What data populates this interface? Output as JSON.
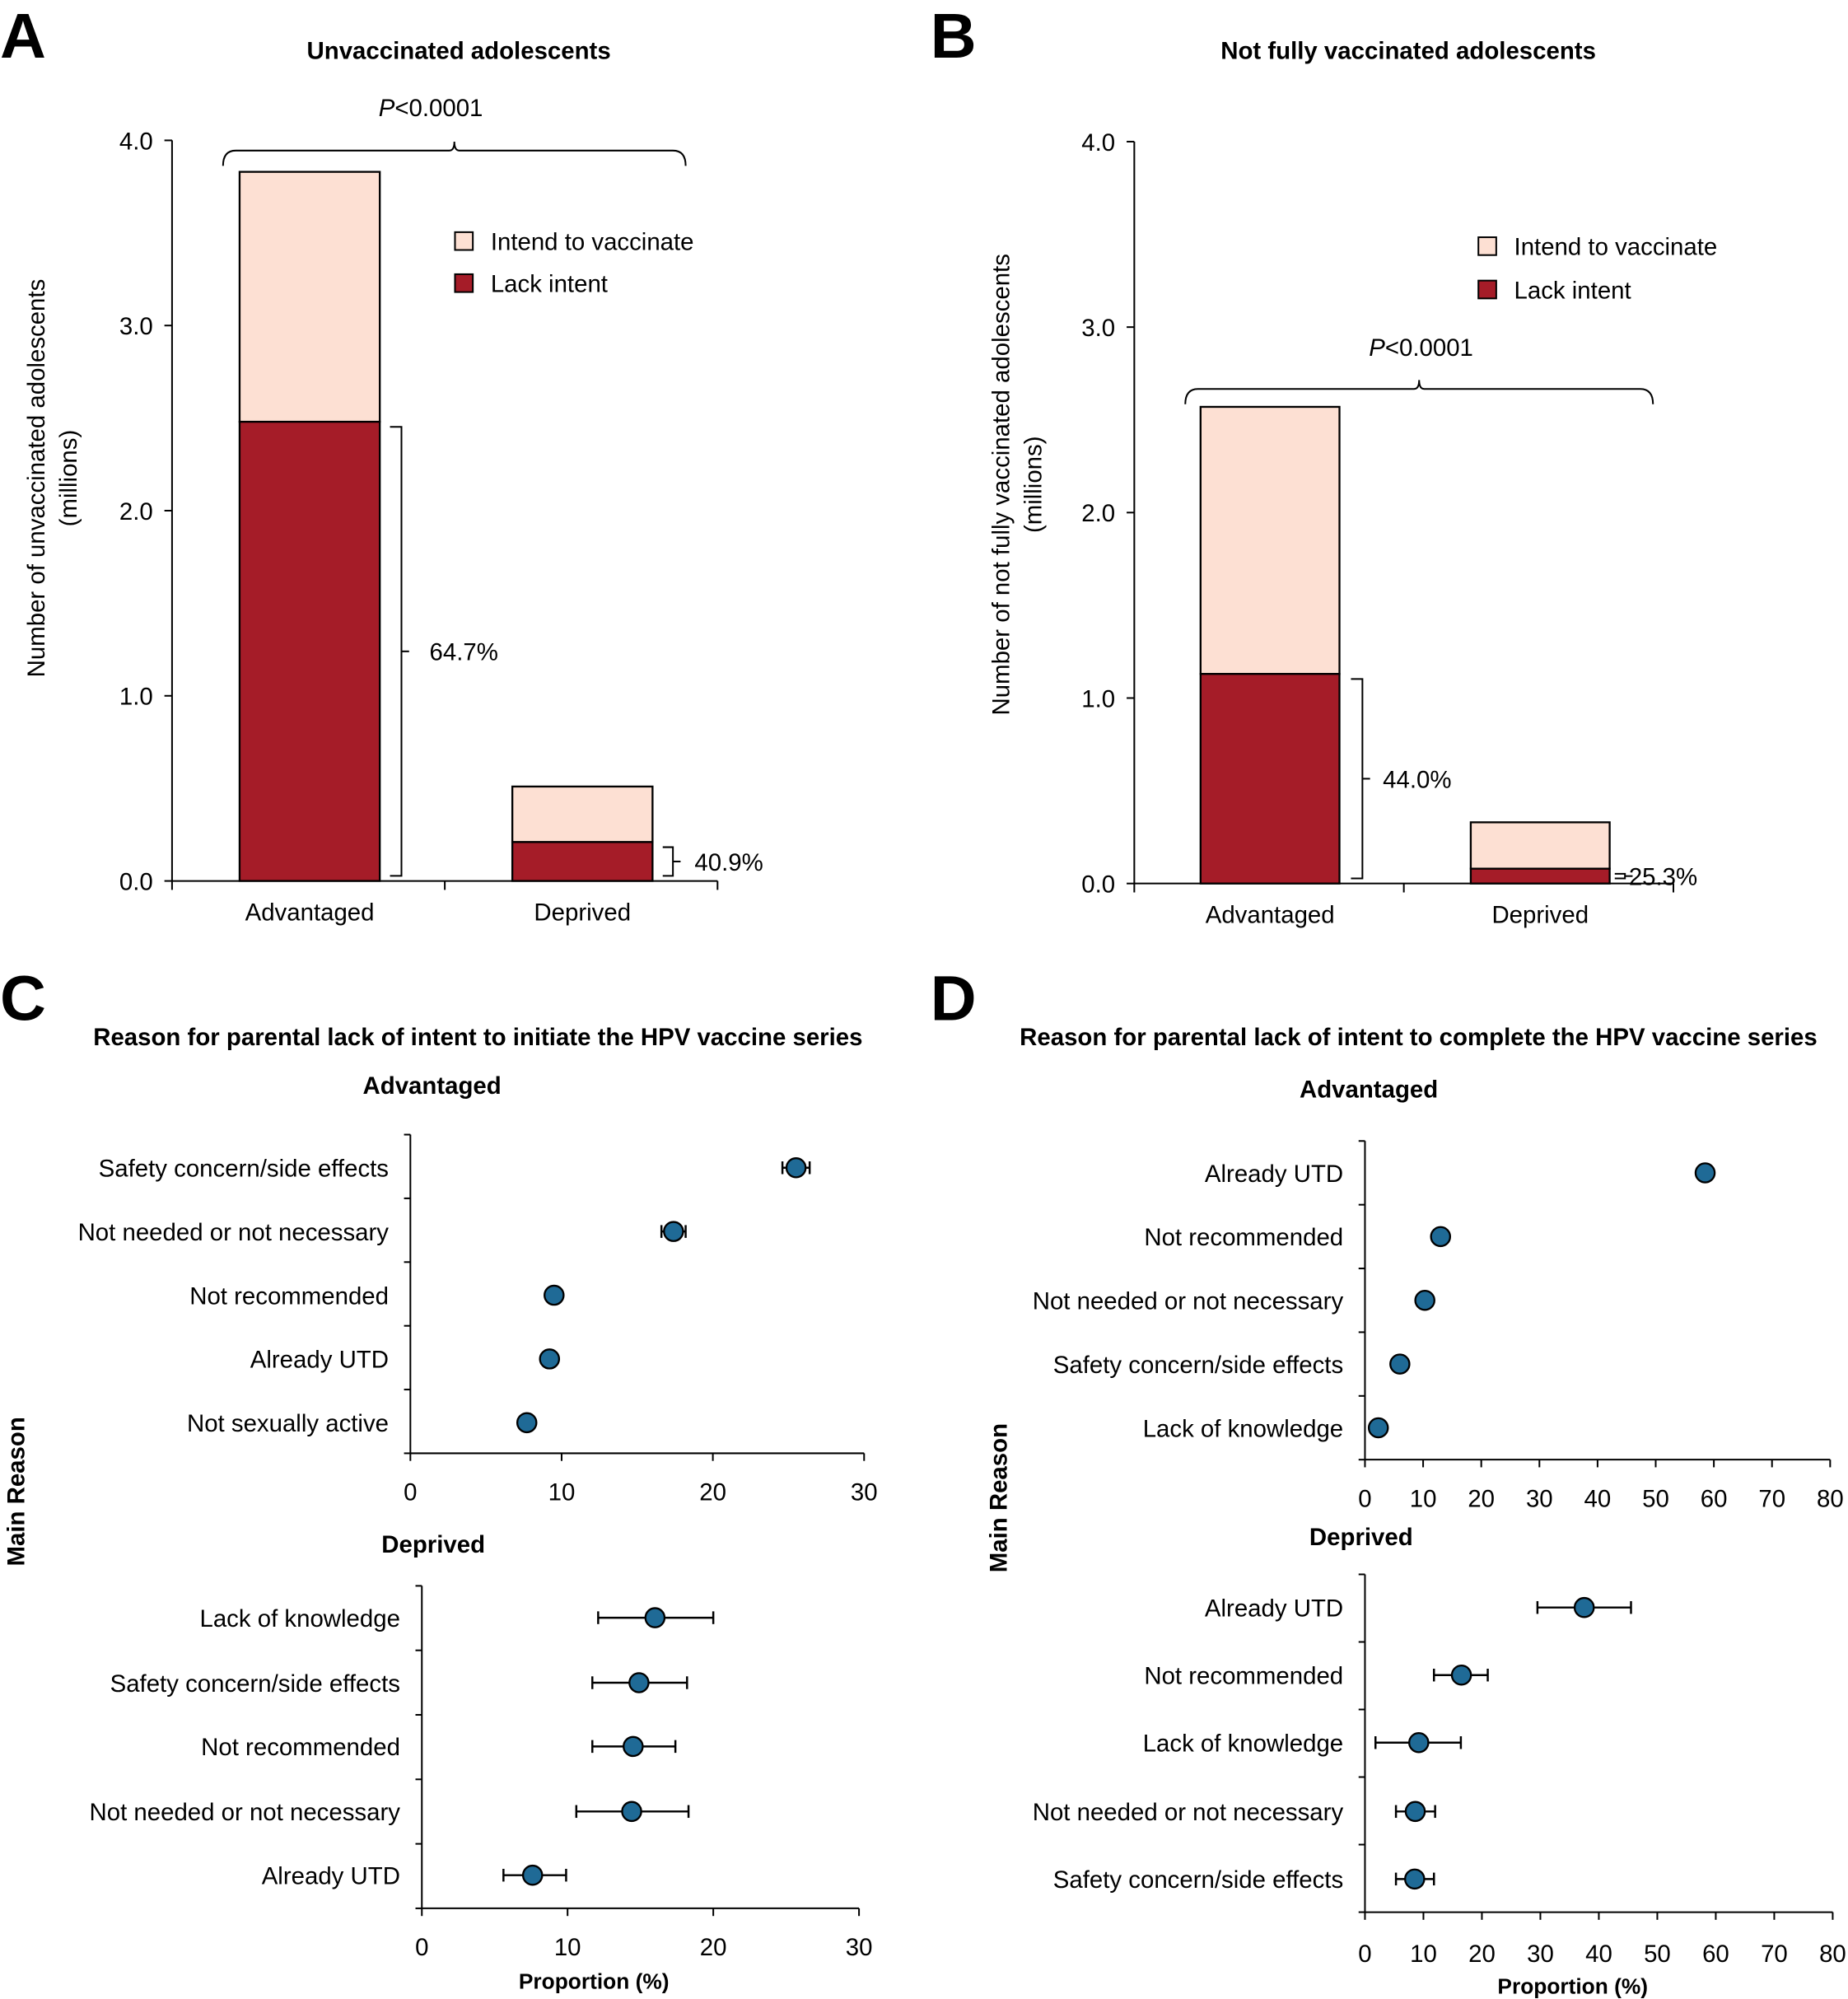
{
  "colors": {
    "intend": "#fde0d3",
    "lack": "#a51c28",
    "dot": "#1f6a96",
    "line": "#000000"
  },
  "chart_data": [
    {
      "panel": "A",
      "type": "bar",
      "stacked": true,
      "title": "Unvaccinated adolescents",
      "ylabel": [
        "Number of unvaccinated adolescents",
        "(millions)"
      ],
      "ylim": [
        0,
        4
      ],
      "yticks": [
        "0.0",
        "1.0",
        "2.0",
        "3.0",
        "4.0"
      ],
      "categories": [
        "Advantaged",
        "Deprived"
      ],
      "series": [
        {
          "name": "Lack intent",
          "values": [
            2.48,
            0.21
          ]
        },
        {
          "name": "Intend to vaccinate",
          "values": [
            1.35,
            0.3
          ]
        }
      ],
      "legend": [
        "Intend to vaccinate",
        "Lack intent"
      ],
      "legend_placement": "top-right",
      "pvalue": "<0.0001",
      "pvalue_prefix": "P",
      "percent_labels": [
        "64.7%",
        "40.9%"
      ]
    },
    {
      "panel": "B",
      "type": "bar",
      "stacked": true,
      "title": "Not fully vaccinated adolescents",
      "ylabel": [
        "Number of not fully vaccinated adolescents",
        "(millions)"
      ],
      "ylim": [
        0,
        4
      ],
      "yticks": [
        "0.0",
        "1.0",
        "2.0",
        "3.0",
        "4.0"
      ],
      "categories": [
        "Advantaged",
        "Deprived"
      ],
      "series": [
        {
          "name": "Lack intent",
          "values": [
            1.13,
            0.08
          ]
        },
        {
          "name": "Intend to vaccinate",
          "values": [
            1.44,
            0.25
          ]
        }
      ],
      "legend": [
        "Intend to vaccinate",
        "Lack intent"
      ],
      "legend_placement": "top-right",
      "pvalue": "<0.0001",
      "pvalue_prefix": "P",
      "percent_labels": [
        "44.0%",
        "25.3%"
      ]
    },
    {
      "panel": "C",
      "type": "scatter",
      "title": "Reason for parental lack of intent to initiate the HPV vaccine series",
      "ylabel": "Main Reason",
      "xlabel": "Proportion (%)",
      "subplots": [
        {
          "title": "Advantaged",
          "xlim": [
            0,
            30
          ],
          "xticks": [
            0,
            10,
            20,
            30
          ],
          "points": [
            {
              "label": "Safety concern/side effects",
              "value": 25.5,
              "ci": [
                24.6,
                26.4
              ]
            },
            {
              "label": "Not needed or not necessary",
              "value": 17.4,
              "ci": [
                16.6,
                18.2
              ]
            },
            {
              "label": "Not recommended",
              "value": 9.5,
              "ci": null
            },
            {
              "label": "Already UTD",
              "value": 9.2,
              "ci": null
            },
            {
              "label": "Not sexually active",
              "value": 7.7,
              "ci": null
            }
          ]
        },
        {
          "title": "Deprived",
          "xlim": [
            0,
            30
          ],
          "xticks": [
            0,
            10,
            20,
            30
          ],
          "points": [
            {
              "label": "Lack of knowledge",
              "value": 16.0,
              "ci": [
                12.1,
                20.0
              ]
            },
            {
              "label": "Safety concern/side effects",
              "value": 14.9,
              "ci": [
                11.7,
                18.2
              ]
            },
            {
              "label": "Not recommended",
              "value": 14.5,
              "ci": [
                11.7,
                17.4
              ]
            },
            {
              "label": "Not needed or not necessary",
              "value": 14.4,
              "ci": [
                10.6,
                18.3
              ]
            },
            {
              "label": "Already UTD",
              "value": 7.6,
              "ci": [
                5.6,
                9.9
              ]
            }
          ]
        }
      ]
    },
    {
      "panel": "D",
      "type": "scatter",
      "title": "Reason for parental lack of intent to complete the HPV vaccine series",
      "ylabel": "Main Reason",
      "xlabel": "Proportion (%)",
      "subplots": [
        {
          "title": "Advantaged",
          "xlim": [
            0,
            80
          ],
          "xticks": [
            0,
            10,
            20,
            30,
            40,
            50,
            60,
            70,
            80
          ],
          "points": [
            {
              "label": "Already UTD",
              "value": 58.5,
              "ci": [
                57.5,
                59.5
              ]
            },
            {
              "label": "Not recommended",
              "value": 13.0,
              "ci": null
            },
            {
              "label": "Not needed or not necessary",
              "value": 10.3,
              "ci": null
            },
            {
              "label": "Safety concern/side effects",
              "value": 6.0,
              "ci": null
            },
            {
              "label": "Lack of knowledge",
              "value": 2.3,
              "ci": null
            }
          ]
        },
        {
          "title": "Deprived",
          "xlim": [
            0,
            80
          ],
          "xticks": [
            0,
            10,
            20,
            30,
            40,
            50,
            60,
            70,
            80
          ],
          "points": [
            {
              "label": "Already UTD",
              "value": 37.5,
              "ci": [
                29.5,
                45.5
              ]
            },
            {
              "label": "Not recommended",
              "value": 16.5,
              "ci": [
                11.8,
                21.0
              ]
            },
            {
              "label": "Lack of knowledge",
              "value": 9.2,
              "ci": [
                1.8,
                16.4
              ]
            },
            {
              "label": "Not needed or not necessary",
              "value": 8.6,
              "ci": [
                5.3,
                12.0
              ]
            },
            {
              "label": "Safety concern/side effects",
              "value": 8.5,
              "ci": [
                5.3,
                11.8
              ]
            }
          ]
        }
      ]
    }
  ]
}
